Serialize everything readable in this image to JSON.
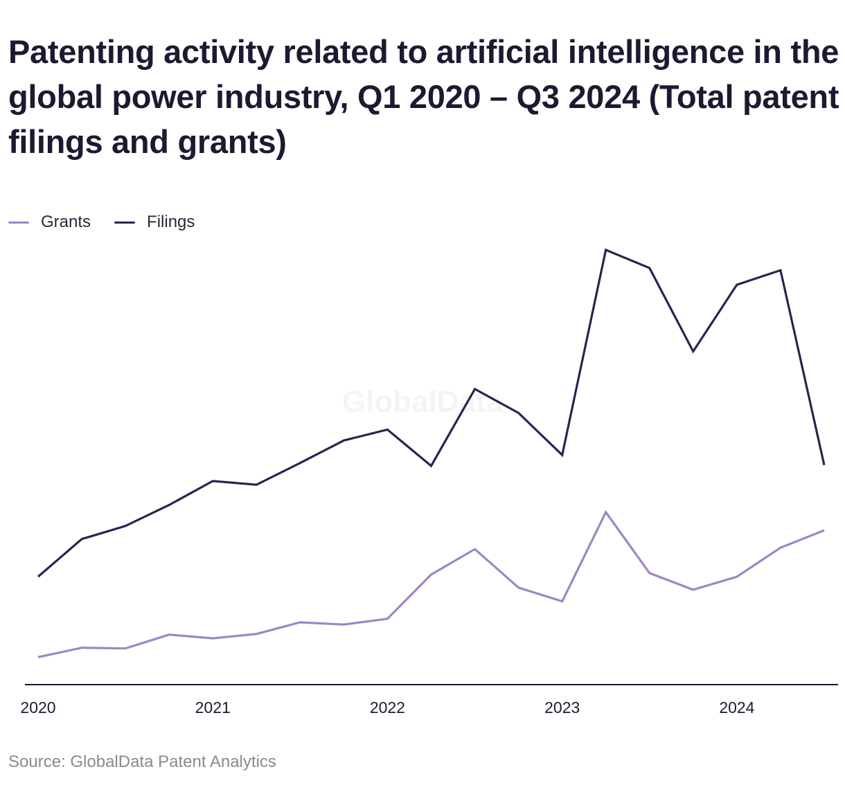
{
  "chart_data": {
    "type": "line",
    "title": "Patenting activity related to artificial intelligence in the global power industry, Q1 2020 – Q3 2024 (Total patent filings and grants)",
    "source": "Source: GlobalData Patent Analytics",
    "watermark": "GlobalData",
    "xlabel": "",
    "ylabel": "",
    "x": [
      "Q1 2020",
      "Q2 2020",
      "Q3 2020",
      "Q4 2020",
      "Q1 2021",
      "Q2 2021",
      "Q3 2021",
      "Q4 2021",
      "Q1 2022",
      "Q2 2022",
      "Q3 2022",
      "Q4 2022",
      "Q1 2023",
      "Q2 2023",
      "Q3 2023",
      "Q4 2023",
      "Q1 2024",
      "Q2 2024",
      "Q3 2024"
    ],
    "x_tick_labels": [
      "2020",
      "2021",
      "2022",
      "2023",
      "2024"
    ],
    "x_tick_index": [
      0,
      4,
      8,
      12,
      16
    ],
    "ylim": [
      0,
      600
    ],
    "grid": false,
    "legend_position": "top-left",
    "series": [
      {
        "name": "Grants",
        "color": "#9d86c4",
        "values": [
          37,
          50,
          49,
          68,
          63,
          69,
          85,
          82,
          90,
          151,
          186,
          133,
          114,
          237,
          153,
          130,
          148,
          188,
          212
        ]
      },
      {
        "name": "Filings",
        "color": "#2e2150",
        "values": [
          148,
          200,
          218,
          247,
          280,
          275,
          305,
          336,
          351,
          301,
          407,
          374,
          316,
          599,
          574,
          459,
          551,
          571,
          302
        ]
      }
    ]
  }
}
